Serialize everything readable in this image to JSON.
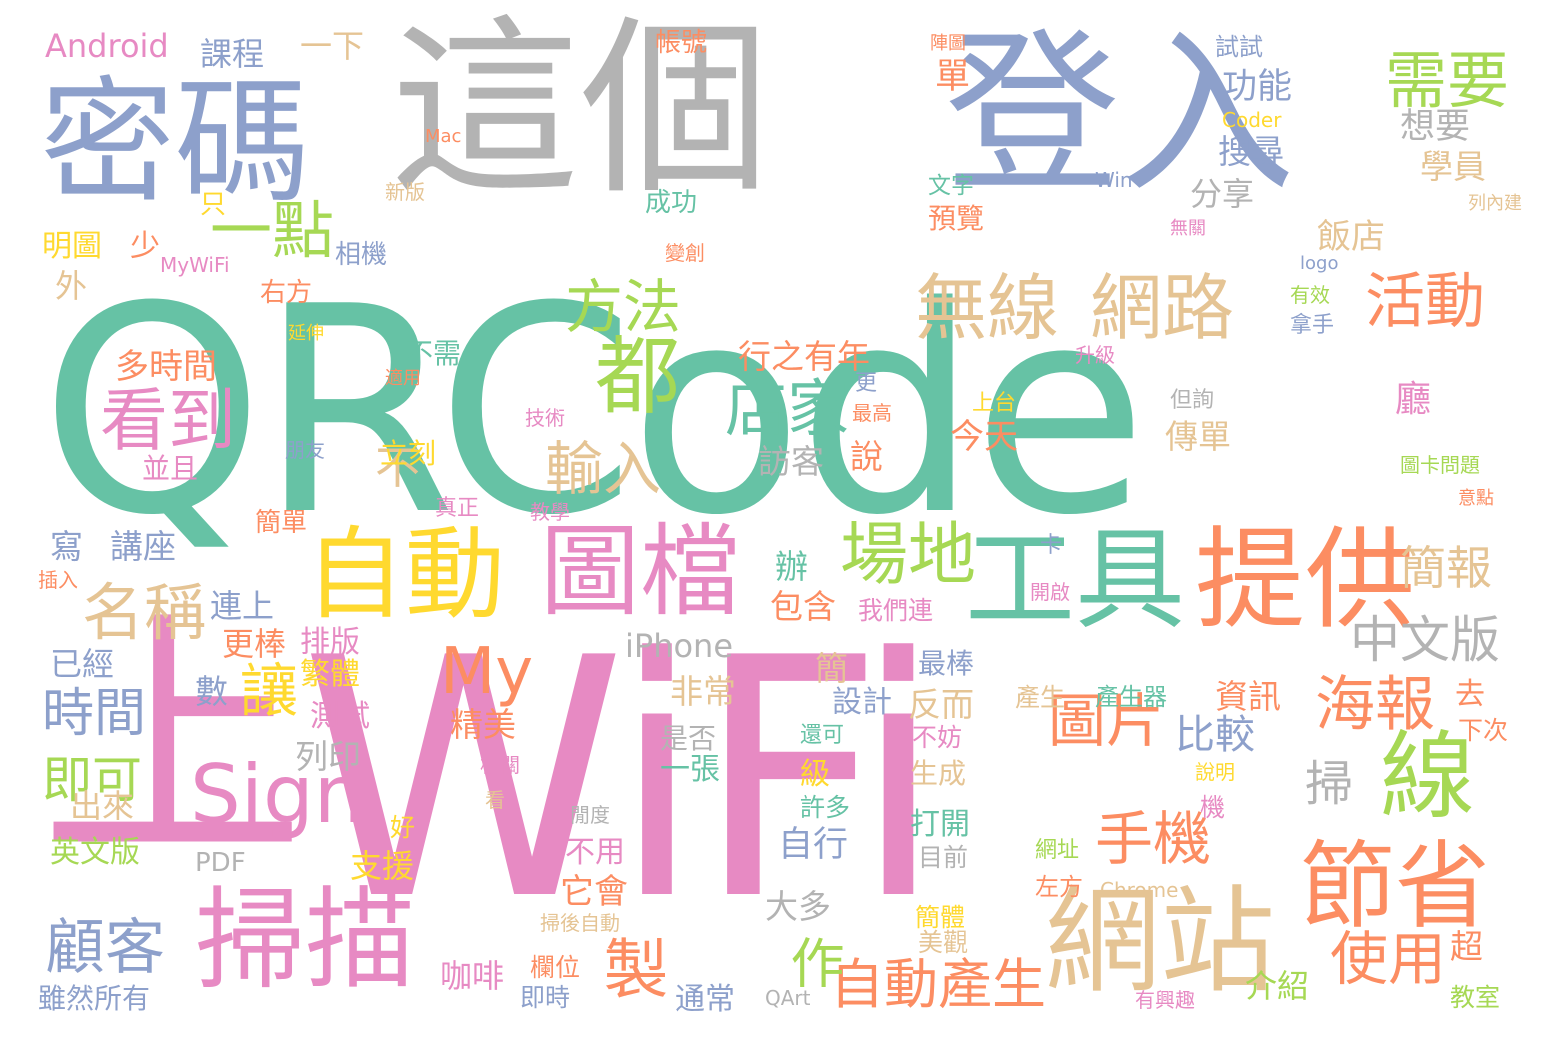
{
  "palette": {
    "green": "#66C2A5",
    "orange": "#FC8D62",
    "blue": "#8DA0CB",
    "pink": "#E78AC3",
    "lime": "#A6D854",
    "yellow": "#FFD92F",
    "tan": "#E5C494",
    "grey": "#B3B3B3"
  },
  "words": [
    {
      "id": "w1",
      "text": "QRCode",
      "color": "green"
    },
    {
      "id": "w2",
      "text": "WiFi",
      "color": "pink"
    },
    {
      "id": "w3",
      "text": "這個",
      "color": "grey"
    },
    {
      "id": "w4",
      "text": "登入",
      "color": "blue"
    },
    {
      "id": "w5",
      "text": "密碼",
      "color": "blue"
    },
    {
      "id": "w6",
      "text": "上",
      "color": "pink"
    },
    {
      "id": "w7",
      "text": "工具",
      "color": "green"
    },
    {
      "id": "w8",
      "text": "提供",
      "color": "orange"
    },
    {
      "id": "w9",
      "text": "圖檔",
      "color": "pink"
    },
    {
      "id": "w10",
      "text": "自動",
      "color": "yellow"
    },
    {
      "id": "w11",
      "text": "掃描",
      "color": "pink"
    },
    {
      "id": "w12",
      "text": "Sign",
      "color": "pink"
    },
    {
      "id": "w13",
      "text": "網站",
      "color": "tan"
    },
    {
      "id": "w14",
      "text": "節省",
      "color": "orange"
    },
    {
      "id": "w15",
      "text": "線",
      "color": "lime"
    },
    {
      "id": "w16",
      "text": "無線",
      "color": "tan"
    },
    {
      "id": "w17",
      "text": "網路",
      "color": "tan"
    },
    {
      "id": "w18",
      "text": "都",
      "color": "lime"
    },
    {
      "id": "w19",
      "text": "需要",
      "color": "lime"
    },
    {
      "id": "w20",
      "text": "活動",
      "color": "orange"
    },
    {
      "id": "w21",
      "text": "方法",
      "color": "lime"
    },
    {
      "id": "w22",
      "text": "一點",
      "color": "lime"
    },
    {
      "id": "w23",
      "text": "看到",
      "color": "pink"
    },
    {
      "id": "w24",
      "text": "店家",
      "color": "green"
    },
    {
      "id": "w25",
      "text": "場地",
      "color": "lime"
    },
    {
      "id": "w26",
      "text": "名稱",
      "color": "tan"
    },
    {
      "id": "w27",
      "text": "輸入",
      "color": "tan"
    },
    {
      "id": "w28",
      "text": "My",
      "color": "orange"
    },
    {
      "id": "w29",
      "text": "圖片",
      "color": "orange"
    },
    {
      "id": "w30",
      "text": "海報",
      "color": "orange"
    },
    {
      "id": "w31",
      "text": "中文版",
      "color": "grey"
    },
    {
      "id": "w32",
      "text": "簡報",
      "color": "tan"
    },
    {
      "id": "w33",
      "text": "手機",
      "color": "orange"
    },
    {
      "id": "w34",
      "text": "使用",
      "color": "orange"
    },
    {
      "id": "w35",
      "text": "顧客",
      "color": "blue"
    },
    {
      "id": "w36",
      "text": "自動產生",
      "color": "orange"
    },
    {
      "id": "w37",
      "text": "製",
      "color": "orange"
    },
    {
      "id": "w38",
      "text": "作",
      "color": "lime"
    },
    {
      "id": "w39",
      "text": "讓",
      "color": "yellow"
    },
    {
      "id": "w40",
      "text": "時間",
      "color": "blue"
    },
    {
      "id": "w41",
      "text": "即可",
      "color": "lime"
    },
    {
      "id": "w42",
      "text": "掃",
      "color": "grey"
    },
    {
      "id": "w43",
      "text": "比較",
      "color": "blue"
    },
    {
      "id": "w44",
      "text": "不",
      "color": "tan"
    },
    {
      "id": "w45",
      "text": "多時間",
      "color": "orange"
    },
    {
      "id": "w46",
      "text": "課程",
      "color": "blue"
    },
    {
      "id": "w47",
      "text": "一下",
      "color": "tan"
    },
    {
      "id": "w48",
      "text": "Android",
      "color": "pink"
    },
    {
      "id": "w49",
      "text": "帳號",
      "color": "orange"
    },
    {
      "id": "w50",
      "text": "陣圖",
      "color": "orange"
    },
    {
      "id": "w51",
      "text": "單",
      "color": "orange"
    },
    {
      "id": "w52",
      "text": "試試",
      "color": "blue"
    },
    {
      "id": "w53",
      "text": "功能",
      "color": "blue"
    },
    {
      "id": "w54",
      "text": "Coder",
      "color": "yellow"
    },
    {
      "id": "w55",
      "text": "想要",
      "color": "grey"
    },
    {
      "id": "w56",
      "text": "搜尋",
      "color": "blue"
    },
    {
      "id": "w57",
      "text": "學員",
      "color": "tan"
    },
    {
      "id": "w58",
      "text": "Win",
      "color": "blue"
    },
    {
      "id": "w59",
      "text": "文字",
      "color": "green"
    },
    {
      "id": "w60",
      "text": "預覽",
      "color": "orange"
    },
    {
      "id": "w61",
      "text": "分享",
      "color": "grey"
    },
    {
      "id": "w62",
      "text": "列內建",
      "color": "tan"
    },
    {
      "id": "w63",
      "text": "飯店",
      "color": "tan"
    },
    {
      "id": "w64",
      "text": "無關",
      "color": "pink"
    },
    {
      "id": "w65",
      "text": "logo",
      "color": "blue"
    },
    {
      "id": "w66",
      "text": "有效",
      "color": "lime"
    },
    {
      "id": "w67",
      "text": "拿手",
      "color": "blue"
    },
    {
      "id": "w68",
      "text": "Mac",
      "color": "orange"
    },
    {
      "id": "w69",
      "text": "新版",
      "color": "tan"
    },
    {
      "id": "w70",
      "text": "只",
      "color": "yellow"
    },
    {
      "id": "w71",
      "text": "明圖",
      "color": "yellow"
    },
    {
      "id": "w72",
      "text": "少",
      "color": "orange"
    },
    {
      "id": "w73",
      "text": "MyWiFi",
      "color": "pink"
    },
    {
      "id": "w74",
      "text": "相機",
      "color": "blue"
    },
    {
      "id": "w75",
      "text": "外",
      "color": "tan"
    },
    {
      "id": "w76",
      "text": "右方",
      "color": "orange"
    },
    {
      "id": "w77",
      "text": "成功",
      "color": "green"
    },
    {
      "id": "w78",
      "text": "變創",
      "color": "orange"
    },
    {
      "id": "w79",
      "text": "延伸",
      "color": "yellow"
    },
    {
      "id": "w80",
      "text": "不需",
      "color": "green"
    },
    {
      "id": "w81",
      "text": "適用",
      "color": "orange"
    },
    {
      "id": "w82",
      "text": "技術",
      "color": "pink"
    },
    {
      "id": "w83",
      "text": "升級",
      "color": "pink"
    },
    {
      "id": "w84",
      "text": "行之有年",
      "color": "orange"
    },
    {
      "id": "w85",
      "text": "更",
      "color": "blue"
    },
    {
      "id": "w86",
      "text": "最高",
      "color": "orange"
    },
    {
      "id": "w87",
      "text": "上台",
      "color": "yellow"
    },
    {
      "id": "w88",
      "text": "但詢",
      "color": "grey"
    },
    {
      "id": "w89",
      "text": "廳",
      "color": "pink"
    },
    {
      "id": "w90",
      "text": "今天",
      "color": "orange"
    },
    {
      "id": "w91",
      "text": "傳單",
      "color": "tan"
    },
    {
      "id": "w92",
      "text": "訪客",
      "color": "grey"
    },
    {
      "id": "w93",
      "text": "說",
      "color": "orange"
    },
    {
      "id": "w94",
      "text": "圖卡問題",
      "color": "lime"
    },
    {
      "id": "w95",
      "text": "並且",
      "color": "pink"
    },
    {
      "id": "w96",
      "text": "朋友",
      "color": "blue"
    },
    {
      "id": "w97",
      "text": "立刻",
      "color": "yellow"
    },
    {
      "id": "w98",
      "text": "真正",
      "color": "pink"
    },
    {
      "id": "w99",
      "text": "教學",
      "color": "pink"
    },
    {
      "id": "w100",
      "text": "意點",
      "color": "orange"
    },
    {
      "id": "w101",
      "text": "寫",
      "color": "blue"
    },
    {
      "id": "w102",
      "text": "講座",
      "color": "blue"
    },
    {
      "id": "w103",
      "text": "簡單",
      "color": "orange"
    },
    {
      "id": "w104",
      "text": "插入",
      "color": "orange"
    },
    {
      "id": "w105",
      "text": "卡",
      "color": "blue"
    },
    {
      "id": "w106",
      "text": "開啟",
      "color": "pink"
    },
    {
      "id": "w107",
      "text": "辦",
      "color": "green"
    },
    {
      "id": "w108",
      "text": "連上",
      "color": "blue"
    },
    {
      "id": "w109",
      "text": "包含",
      "color": "orange"
    },
    {
      "id": "w110",
      "text": "我們連",
      "color": "pink"
    },
    {
      "id": "w111",
      "text": "iPhone",
      "color": "grey"
    },
    {
      "id": "w112",
      "text": "更棒",
      "color": "orange"
    },
    {
      "id": "w113",
      "text": "排版",
      "color": "pink"
    },
    {
      "id": "w114",
      "text": "已經",
      "color": "blue"
    },
    {
      "id": "w115",
      "text": "繁體",
      "color": "yellow"
    },
    {
      "id": "w116",
      "text": "數",
      "color": "blue"
    },
    {
      "id": "w117",
      "text": "測試",
      "color": "pink"
    },
    {
      "id": "w118",
      "text": "精美",
      "color": "orange"
    },
    {
      "id": "w119",
      "text": "非常",
      "color": "tan"
    },
    {
      "id": "w120",
      "text": "簡",
      "color": "tan"
    },
    {
      "id": "w121",
      "text": "最棒",
      "color": "blue"
    },
    {
      "id": "w122",
      "text": "設計",
      "color": "blue"
    },
    {
      "id": "w123",
      "text": "反而",
      "color": "tan"
    },
    {
      "id": "w124",
      "text": "產生",
      "color": "tan"
    },
    {
      "id": "w125",
      "text": "產生器",
      "color": "green"
    },
    {
      "id": "w126",
      "text": "資訊",
      "color": "orange"
    },
    {
      "id": "w127",
      "text": "去",
      "color": "orange"
    },
    {
      "id": "w128",
      "text": "下次",
      "color": "orange"
    },
    {
      "id": "w129",
      "text": "列印",
      "color": "grey"
    },
    {
      "id": "w130",
      "text": "是否",
      "color": "grey"
    },
    {
      "id": "w131",
      "text": "一張",
      "color": "green"
    },
    {
      "id": "w132",
      "text": "還可",
      "color": "green"
    },
    {
      "id": "w133",
      "text": "不妨",
      "color": "pink"
    },
    {
      "id": "w134",
      "text": "級",
      "color": "yellow"
    },
    {
      "id": "w135",
      "text": "生成",
      "color": "tan"
    },
    {
      "id": "w136",
      "text": "說明",
      "color": "yellow"
    },
    {
      "id": "w137",
      "text": "相關",
      "color": "pink"
    },
    {
      "id": "w138",
      "text": "出來",
      "color": "tan"
    },
    {
      "id": "w139",
      "text": "看",
      "color": "tan"
    },
    {
      "id": "w140",
      "text": "閒度",
      "color": "grey"
    },
    {
      "id": "w141",
      "text": "機",
      "color": "pink"
    },
    {
      "id": "w142",
      "text": "好",
      "color": "yellow"
    },
    {
      "id": "w143",
      "text": "許多",
      "color": "green"
    },
    {
      "id": "w144",
      "text": "打開",
      "color": "green"
    },
    {
      "id": "w145",
      "text": "英文版",
      "color": "lime"
    },
    {
      "id": "w146",
      "text": "PDF",
      "color": "grey"
    },
    {
      "id": "w147",
      "text": "支援",
      "color": "yellow"
    },
    {
      "id": "w148",
      "text": "不用",
      "color": "pink"
    },
    {
      "id": "w149",
      "text": "自行",
      "color": "blue"
    },
    {
      "id": "w150",
      "text": "目前",
      "color": "grey"
    },
    {
      "id": "w151",
      "text": "網址",
      "color": "lime"
    },
    {
      "id": "w152",
      "text": "它會",
      "color": "orange"
    },
    {
      "id": "w153",
      "text": "左方",
      "color": "orange"
    },
    {
      "id": "w154",
      "text": "Chrome",
      "color": "tan"
    },
    {
      "id": "w155",
      "text": "掃後自動",
      "color": "tan"
    },
    {
      "id": "w156",
      "text": "簡體",
      "color": "yellow"
    },
    {
      "id": "w157",
      "text": "大多",
      "color": "grey"
    },
    {
      "id": "w158",
      "text": "美觀",
      "color": "tan"
    },
    {
      "id": "w159",
      "text": "介紹",
      "color": "lime"
    },
    {
      "id": "w160",
      "text": "超",
      "color": "orange"
    },
    {
      "id": "w161",
      "text": "咖啡",
      "color": "pink"
    },
    {
      "id": "w162",
      "text": "欄位",
      "color": "orange"
    },
    {
      "id": "w163",
      "text": "雖然所有",
      "color": "blue"
    },
    {
      "id": "w164",
      "text": "即時",
      "color": "blue"
    },
    {
      "id": "w165",
      "text": "通常",
      "color": "blue"
    },
    {
      "id": "w166",
      "text": "QArt",
      "color": "grey"
    },
    {
      "id": "w167",
      "text": "有興趣",
      "color": "pink"
    },
    {
      "id": "w168",
      "text": "教室",
      "color": "lime"
    }
  ]
}
